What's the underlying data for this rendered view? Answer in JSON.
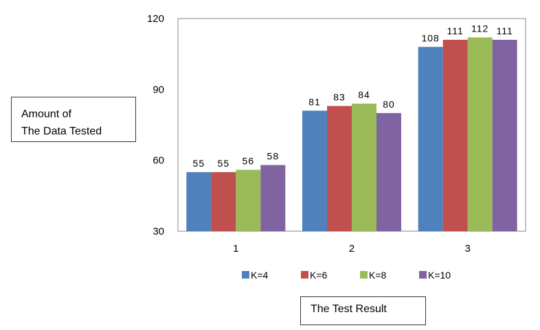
{
  "chart_data": {
    "type": "bar",
    "title": "",
    "xlabel": "The Test Result",
    "ylabel": [
      "Amount of",
      "The Data Tested"
    ],
    "categories": [
      "1",
      "2",
      "3"
    ],
    "series": [
      {
        "name": "K=4",
        "values": [
          55,
          81,
          108
        ],
        "color": "#4F81BD"
      },
      {
        "name": "K=6",
        "values": [
          55,
          83,
          111
        ],
        "color": "#C0504D"
      },
      {
        "name": "K=8",
        "values": [
          56,
          84,
          112
        ],
        "color": "#9BBB59"
      },
      {
        "name": "K=10",
        "values": [
          58,
          80,
          111
        ],
        "color": "#8064A2"
      }
    ],
    "ylim": [
      30,
      120
    ],
    "yticks": [
      30,
      60,
      90,
      120
    ],
    "grid": false,
    "legend_position": "bottom",
    "data_labels": true
  }
}
